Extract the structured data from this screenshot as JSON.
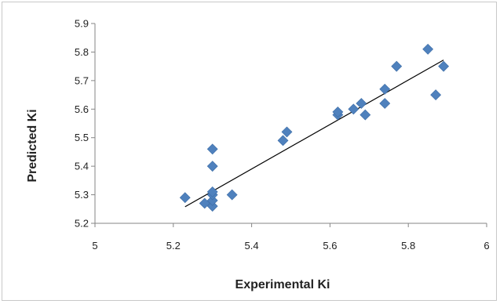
{
  "chart_data": {
    "type": "scatter",
    "title": "",
    "xlabel": "Experimental Ki",
    "ylabel": "Predicted Ki",
    "xlim": [
      5,
      6
    ],
    "ylim": [
      5.2,
      5.9
    ],
    "x_ticks": [
      "5",
      "5.2",
      "5.4",
      "5.6",
      "5.8",
      "6"
    ],
    "y_ticks": [
      "5.2",
      "5.3",
      "5.4",
      "5.5",
      "5.6",
      "5.7",
      "5.8",
      "5.9"
    ],
    "x_tick_values": [
      5,
      5.2,
      5.4,
      5.6,
      5.8,
      6
    ],
    "y_tick_values": [
      5.2,
      5.3,
      5.4,
      5.5,
      5.6,
      5.7,
      5.8,
      5.9
    ],
    "grid": false,
    "legend": "none",
    "marker_color": "#4f81bd",
    "trendline_color": "#000000",
    "points": [
      {
        "x": 5.23,
        "y": 5.29
      },
      {
        "x": 5.28,
        "y": 5.27
      },
      {
        "x": 5.3,
        "y": 5.26
      },
      {
        "x": 5.3,
        "y": 5.28
      },
      {
        "x": 5.3,
        "y": 5.3
      },
      {
        "x": 5.3,
        "y": 5.31
      },
      {
        "x": 5.3,
        "y": 5.4
      },
      {
        "x": 5.3,
        "y": 5.46
      },
      {
        "x": 5.35,
        "y": 5.3
      },
      {
        "x": 5.48,
        "y": 5.49
      },
      {
        "x": 5.49,
        "y": 5.52
      },
      {
        "x": 5.62,
        "y": 5.58
      },
      {
        "x": 5.62,
        "y": 5.59
      },
      {
        "x": 5.66,
        "y": 5.6
      },
      {
        "x": 5.68,
        "y": 5.62
      },
      {
        "x": 5.69,
        "y": 5.58
      },
      {
        "x": 5.74,
        "y": 5.62
      },
      {
        "x": 5.74,
        "y": 5.67
      },
      {
        "x": 5.77,
        "y": 5.75
      },
      {
        "x": 5.85,
        "y": 5.81
      },
      {
        "x": 5.87,
        "y": 5.65
      },
      {
        "x": 5.89,
        "y": 5.75
      }
    ],
    "trendline": {
      "x": [
        5.23,
        5.89
      ],
      "y": [
        5.258,
        5.772
      ]
    }
  }
}
